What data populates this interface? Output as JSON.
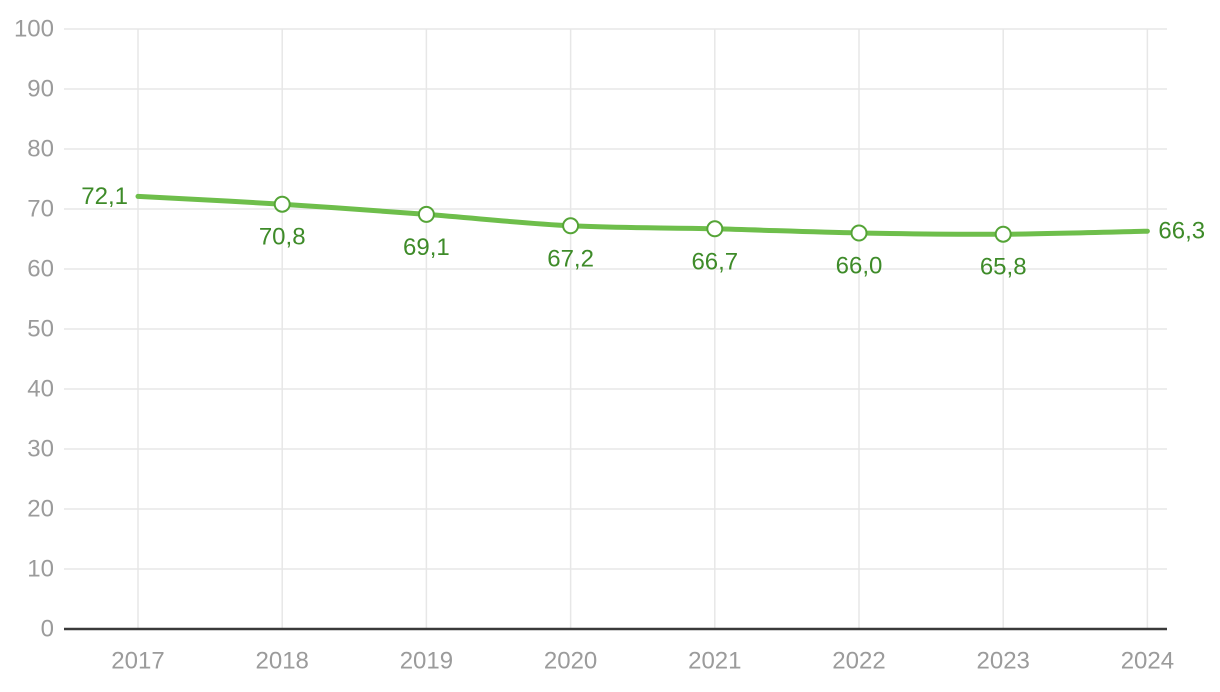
{
  "chart_data": {
    "type": "line",
    "title": "",
    "xlabel": "",
    "ylabel": "",
    "x": [
      2017,
      2018,
      2019,
      2020,
      2021,
      2022,
      2023,
      2024
    ],
    "x_labels": [
      "2017",
      "2018",
      "2019",
      "2020",
      "2021",
      "2022",
      "2023",
      "2024"
    ],
    "series": [
      {
        "name": "series-1",
        "values": [
          72.1,
          70.8,
          69.1,
          67.2,
          66.7,
          66.0,
          65.8,
          66.3
        ]
      }
    ],
    "point_labels": [
      "72,1",
      "70,8",
      "69,1",
      "67,2",
      "66,7",
      "66,0",
      "65,8",
      "66,3"
    ],
    "decimal_separator": ",",
    "ylim": [
      0,
      100
    ],
    "yticks": [
      0,
      10,
      20,
      30,
      40,
      50,
      60,
      70,
      80,
      90,
      100
    ],
    "y_tick_labels": [
      "0",
      "10",
      "20",
      "30",
      "40",
      "50",
      "60",
      "70",
      "80",
      "90",
      "100"
    ],
    "grid": true,
    "legend": "none",
    "markers_on": [
      "2018",
      "2019",
      "2020",
      "2021",
      "2022",
      "2023"
    ],
    "first_label_position": "left-of-line-start",
    "last_label_position": "right-of-line-end",
    "colors": {
      "line": "#6ebe4b",
      "marker_stroke": "#55a437",
      "marker_fill": "#ffffff",
      "data_label": "#3e8b29",
      "axis_label": "#9b9b9b",
      "gridline": "#e7e7e7",
      "axis_line": "#3a3a3a",
      "background": "#ffffff"
    }
  }
}
